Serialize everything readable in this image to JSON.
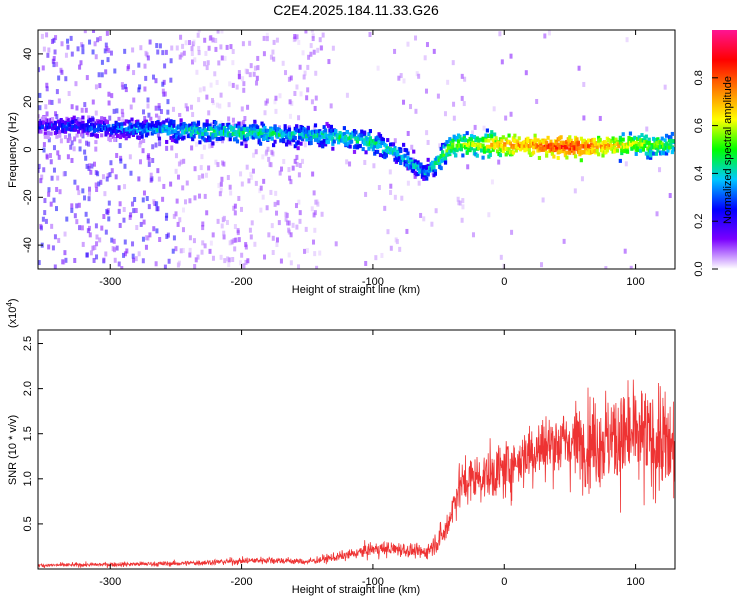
{
  "title": "C2E4.2025.184.11.33.G26",
  "chart_data": [
    {
      "type": "heatmap",
      "title": "C2E4.2025.184.11.33.G26",
      "xlabel": "Height of straight line (km)",
      "ylabel": "Frequency (Hz)",
      "xlim": [
        -355,
        130
      ],
      "ylim": [
        -50,
        50
      ],
      "x_ticks": [
        -300,
        -200,
        -100,
        0,
        100
      ],
      "y_ticks": [
        -40,
        -20,
        0,
        20,
        40
      ],
      "colorbar": {
        "label": "Normalized spectral amplitude",
        "range": [
          0,
          1
        ],
        "ticks": [
          "0.0",
          "0.2",
          "0.4",
          "0.6",
          "0.8"
        ],
        "colors": [
          "#ffffff",
          "#7a00ff",
          "#0000ff",
          "#00c8ff",
          "#00ff00",
          "#ffff00",
          "#ff8000",
          "#ff0000",
          "#ff1493"
        ]
      },
      "ridge": {
        "x": [
          -355,
          -300,
          -250,
          -200,
          -150,
          -120,
          -100,
          -80,
          -60,
          -50,
          -40,
          -20,
          0,
          50,
          100,
          130
        ],
        "freq": [
          10,
          9,
          8,
          7,
          6,
          5,
          3,
          -2,
          -10,
          -5,
          2,
          2,
          2,
          1,
          2,
          2
        ],
        "amplitude": [
          0.25,
          0.3,
          0.4,
          0.45,
          0.4,
          0.45,
          0.45,
          0.4,
          0.35,
          0.45,
          0.55,
          0.6,
          0.7,
          0.85,
          0.6,
          0.5
        ]
      }
    },
    {
      "type": "line",
      "xlabel": "Height of straight line (km)",
      "ylabel": "SNR (10 * v/v)",
      "scale_label": "(x10",
      "scale_exp": "4",
      "xlim": [
        -355,
        130
      ],
      "ylim": [
        0,
        26500
      ],
      "x_ticks": [
        -300,
        -200,
        -100,
        0,
        100
      ],
      "y_ticks": [
        "0.5",
        "1.0",
        "1.5",
        "2.0",
        "2.5"
      ],
      "series": [
        {
          "color": "#ee3333",
          "envelope": {
            "x": [
              -355,
              -250,
              -180,
              -150,
              -120,
              -100,
              -80,
              -60,
              -45,
              -35,
              -25,
              -10,
              0,
              20,
              40,
              60,
              80,
              100,
              120,
              130
            ],
            "mean": [
              400,
              600,
              1000,
              800,
              1500,
              2200,
              2200,
              1800,
              4000,
              9000,
              10000,
              10500,
              11000,
              13000,
              14000,
              14000,
              14500,
              14500,
              14000,
              13000
            ],
            "spread": [
              300,
              400,
              600,
              500,
              800,
              1200,
              1200,
              1000,
              2500,
              3500,
              4000,
              4000,
              4500,
              5000,
              5500,
              6500,
              8000,
              8500,
              8500,
              8000
            ]
          }
        }
      ]
    }
  ]
}
